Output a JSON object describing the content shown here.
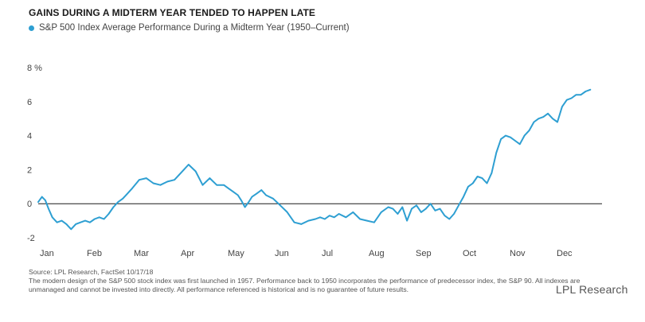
{
  "header": {
    "title": "GAINS DURING A MIDTERM YEAR TENDED TO HAPPEN LATE"
  },
  "footer": {
    "source": "Source: LPL Research, FactSet  10/17/18",
    "note_line1": "The modern design of the S&P 500 stock index was first launched in 1957. Performance back to 1950 incorporates the performance of predecessor index, the S&P 90. All indexes are",
    "note_line2": "unmanaged and cannot be invested into directly. All performance referenced is historical and is no guarantee of future results."
  },
  "logo": {
    "text": "LPL Research"
  },
  "chart_data": {
    "type": "line",
    "series": [
      {
        "name": "S&P 500 Index Average Performance During a Midterm Year (1950–Current)",
        "color": "#2e9fd2",
        "x": [
          0,
          0.08,
          0.15,
          0.22,
          0.3,
          0.4,
          0.5,
          0.6,
          0.7,
          0.8,
          0.9,
          1.0,
          1.1,
          1.2,
          1.3,
          1.4,
          1.5,
          1.6,
          1.7,
          1.8,
          1.9,
          2.0,
          2.15,
          2.3,
          2.45,
          2.6,
          2.75,
          2.9,
          3.0,
          3.1,
          3.2,
          3.35,
          3.5,
          3.65,
          3.8,
          3.95,
          4.05,
          4.15,
          4.25,
          4.32,
          4.4,
          4.48,
          4.55,
          4.65,
          4.75,
          4.85,
          5.0,
          5.15,
          5.3,
          5.45,
          5.6,
          5.75,
          5.9,
          6.0,
          6.1,
          6.2,
          6.3,
          6.4,
          6.55,
          6.7,
          6.85,
          7.0,
          7.15,
          7.3,
          7.45,
          7.55,
          7.65,
          7.75,
          7.85,
          7.95,
          8.05,
          8.15,
          8.25,
          8.35,
          8.45,
          8.55,
          8.65,
          8.75,
          8.85,
          8.95,
          9.05,
          9.15,
          9.25,
          9.35,
          9.45,
          9.55,
          9.65,
          9.75,
          9.85,
          9.95,
          10.05,
          10.15,
          10.25,
          10.35,
          10.45,
          10.55,
          10.65,
          10.75,
          10.85,
          10.95,
          11.05,
          11.15,
          11.25,
          11.35,
          11.45,
          11.55,
          11.65,
          11.75
        ],
        "values": [
          0.1,
          0.4,
          0.2,
          -0.3,
          -0.8,
          -1.1,
          -1.0,
          -1.2,
          -1.5,
          -1.2,
          -1.1,
          -1.0,
          -1.1,
          -0.9,
          -0.8,
          -0.9,
          -0.6,
          -0.2,
          0.1,
          0.3,
          0.6,
          0.9,
          1.4,
          1.5,
          1.2,
          1.1,
          1.3,
          1.4,
          1.7,
          2.0,
          2.3,
          1.9,
          1.1,
          1.5,
          1.1,
          1.1,
          0.9,
          0.7,
          0.5,
          0.2,
          -0.2,
          0.1,
          0.4,
          0.6,
          0.8,
          0.5,
          0.3,
          -0.1,
          -0.5,
          -1.1,
          -1.2,
          -1.0,
          -0.9,
          -0.8,
          -0.9,
          -0.7,
          -0.8,
          -0.6,
          -0.8,
          -0.5,
          -0.9,
          -1.0,
          -1.1,
          -0.5,
          -0.2,
          -0.3,
          -0.6,
          -0.2,
          -1.0,
          -0.3,
          -0.1,
          -0.5,
          -0.3,
          0.0,
          -0.4,
          -0.3,
          -0.7,
          -0.9,
          -0.6,
          -0.1,
          0.4,
          1.0,
          1.2,
          1.6,
          1.5,
          1.2,
          1.8,
          3.0,
          3.8,
          4.0,
          3.9,
          3.7,
          3.5,
          4.0,
          4.3,
          4.8,
          5.0,
          5.1,
          5.3,
          5.0,
          4.8,
          5.7,
          6.1,
          6.2,
          6.4,
          6.4,
          6.6,
          6.7
        ]
      }
    ],
    "x_tick_labels": [
      "Jan",
      "Feb",
      "Mar",
      "Apr",
      "May",
      "Jun",
      "Jul",
      "Aug",
      "Sep",
      "Oct",
      "Nov",
      "Dec"
    ],
    "y_ticks": [
      -2,
      0,
      2,
      4,
      6,
      8
    ],
    "y_tick_labels": [
      "-2",
      "0",
      "2",
      "4",
      "6",
      "8 %"
    ],
    "xlim": [
      0,
      12
    ],
    "ylim": [
      -2,
      8
    ],
    "zero_line": true,
    "grid": false,
    "legend_position": "top-left"
  }
}
